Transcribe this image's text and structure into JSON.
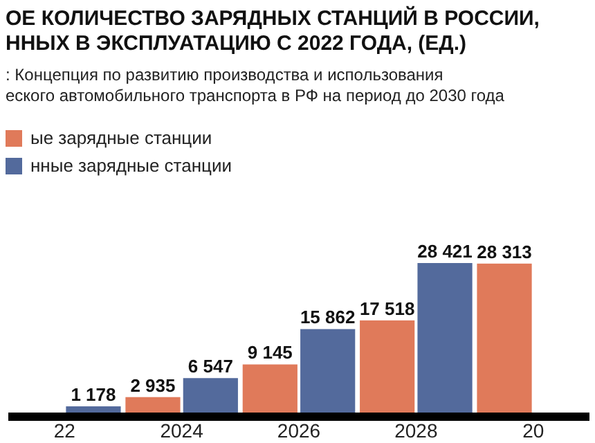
{
  "chart_data": {
    "type": "bar",
    "title": "ОЕ КОЛИЧЕСТВО ЗАРЯДНЫХ СТАНЦИЙ В РОССИИ,\nННЫХ В ЭКСПЛУАТАЦИЮ С 2022 ГОДА, (ЕД.)",
    "subtitle": ": Концепция по развитию производства и использования\nеского автомобильного транспорта в РФ на период до 2030 года",
    "categories": [
      "22",
      "2024",
      "2026",
      "2028",
      "20"
    ],
    "series": [
      {
        "name": "ые зарядные станции",
        "color": "#e07a5a",
        "values": [
          null,
          2935,
          9145,
          17518,
          28313
        ],
        "value_labels": [
          null,
          "2 935",
          "9 145",
          "17 518",
          "28 313"
        ]
      },
      {
        "name": "нные зарядные станции",
        "color": "#536a9c",
        "values": [
          1178,
          6547,
          15862,
          28421,
          null
        ],
        "value_labels": [
          "1 178",
          "6 547",
          "15 862",
          "28 421",
          null
        ]
      }
    ],
    "legend": "top left"
  }
}
